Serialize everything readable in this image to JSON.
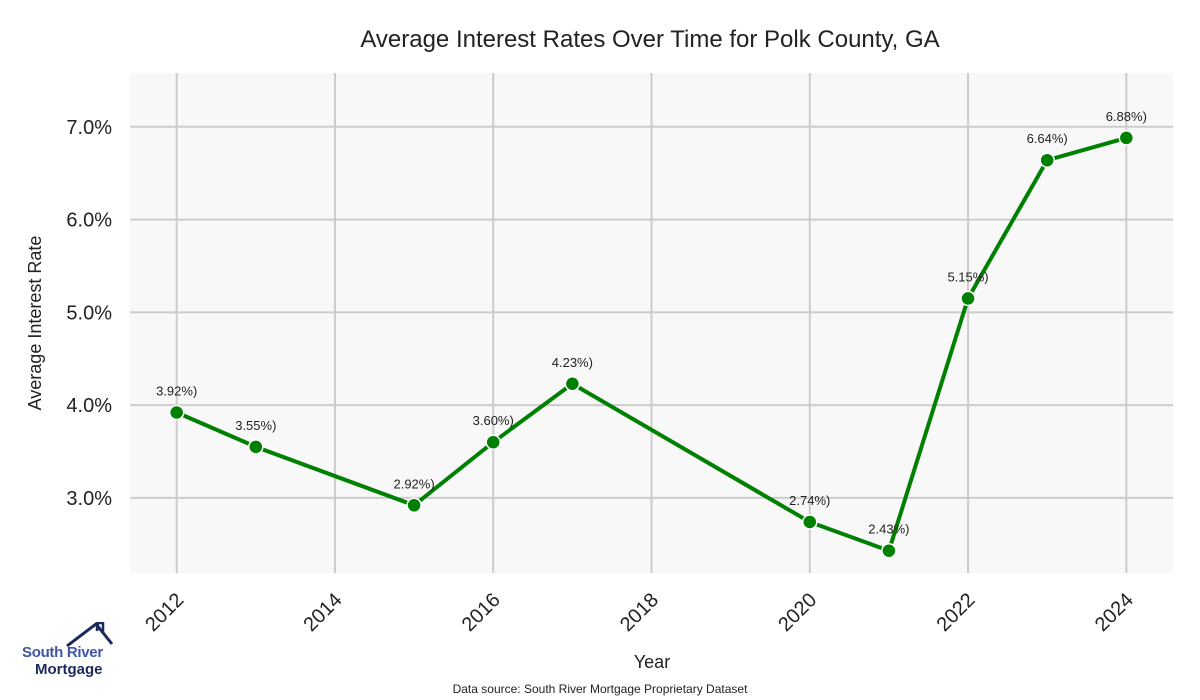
{
  "chart_data": {
    "type": "line",
    "title": "Average Interest Rates Over Time for Polk County, GA",
    "xlabel": "Year",
    "ylabel": "Average Interest Rate",
    "x": [
      2012,
      2013,
      2015,
      2016,
      2017,
      2020,
      2021,
      2022,
      2023,
      2024
    ],
    "values": [
      3.92,
      3.55,
      2.92,
      3.6,
      4.23,
      2.74,
      2.43,
      5.15,
      6.64,
      6.88
    ],
    "data_labels": [
      "3.92%)",
      "3.55%)",
      "2.92%)",
      "3.60%)",
      "4.23%)",
      "2.74%)",
      "2.43%)",
      "5.15%)",
      "6.64%)",
      "6.88%)"
    ],
    "xticks": [
      2012,
      2014,
      2016,
      2018,
      2020,
      2022,
      2024
    ],
    "xtick_labels": [
      "2012",
      "2014",
      "2016",
      "2018",
      "2020",
      "2022",
      "2024"
    ],
    "yticks": [
      3,
      4,
      5,
      6,
      7
    ],
    "ytick_labels": [
      "3.0%",
      "4.0%",
      "5.0%",
      "6.0%",
      "7.0%"
    ],
    "xlim": [
      2011.41,
      2024.59
    ],
    "ylim": [
      2.19,
      7.58
    ],
    "grid": true,
    "line_color": "#008000",
    "plot_bg": "#f8f8f8",
    "grid_color": "#cccccc"
  },
  "logo": {
    "line1": "South River",
    "line2": "Mortgage"
  },
  "source": "Data source: South River Mortgage Proprietary Dataset"
}
